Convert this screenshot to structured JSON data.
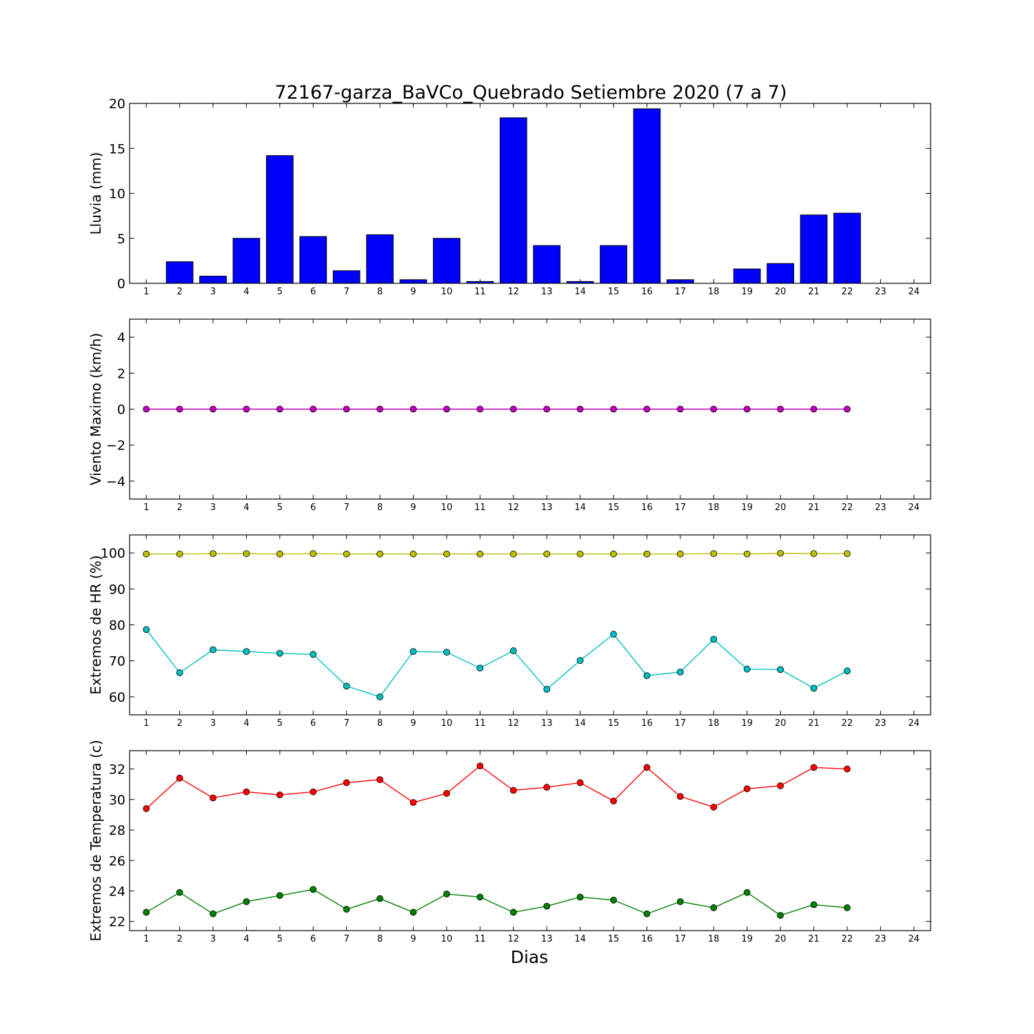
{
  "title": "72167-garza_BaVCo_Quebrado Setiembre 2020  (7 a 7)",
  "xlabel": "Dias",
  "chart_data": [
    {
      "type": "bar",
      "ylabel": "Lluvia (mm)",
      "xlim": [
        0.5,
        24.5
      ],
      "ylim": [
        0,
        20
      ],
      "xticks": [
        1,
        2,
        3,
        4,
        5,
        6,
        7,
        8,
        9,
        10,
        11,
        12,
        13,
        14,
        15,
        16,
        17,
        18,
        19,
        20,
        21,
        22,
        23,
        24
      ],
      "yticks": [
        0,
        5,
        10,
        15,
        20
      ],
      "grid": false,
      "series": [
        {
          "color": "#0000ff",
          "x": [
            1,
            2,
            3,
            4,
            5,
            6,
            7,
            8,
            9,
            10,
            11,
            12,
            13,
            14,
            15,
            16,
            17,
            18,
            19,
            20,
            21,
            22
          ],
          "values": [
            0,
            2.4,
            0.8,
            5.0,
            14.2,
            5.2,
            1.4,
            5.4,
            0.4,
            5.0,
            0.2,
            18.4,
            4.2,
            0.2,
            4.2,
            19.4,
            0.4,
            0,
            1.6,
            2.2,
            7.6,
            7.8
          ]
        }
      ]
    },
    {
      "type": "line",
      "ylabel": "Viento Maximo (km/h)",
      "xlim": [
        0.5,
        24.5
      ],
      "ylim": [
        -5,
        5
      ],
      "xticks": [
        1,
        2,
        3,
        4,
        5,
        6,
        7,
        8,
        9,
        10,
        11,
        12,
        13,
        14,
        15,
        16,
        17,
        18,
        19,
        20,
        21,
        22,
        23,
        24
      ],
      "yticks": [
        -4,
        -2,
        0,
        2,
        4
      ],
      "grid": false,
      "series": [
        {
          "color": "#bf00bf",
          "x": [
            1,
            2,
            3,
            4,
            5,
            6,
            7,
            8,
            9,
            10,
            11,
            12,
            13,
            14,
            15,
            16,
            17,
            18,
            19,
            20,
            21,
            22
          ],
          "values": [
            0,
            0,
            0,
            0,
            0,
            0,
            0,
            0,
            0,
            0,
            0,
            0,
            0,
            0,
            0,
            0,
            0,
            0,
            0,
            0,
            0,
            0
          ]
        }
      ]
    },
    {
      "type": "line",
      "ylabel": "Extremos de HR (%)",
      "xlim": [
        0.5,
        24.5
      ],
      "ylim": [
        55,
        105
      ],
      "xticks": [
        1,
        2,
        3,
        4,
        5,
        6,
        7,
        8,
        9,
        10,
        11,
        12,
        13,
        14,
        15,
        16,
        17,
        18,
        19,
        20,
        21,
        22,
        23,
        24
      ],
      "yticks": [
        60,
        70,
        80,
        90,
        100
      ],
      "grid": false,
      "series": [
        {
          "color": "#bfbf00",
          "x": [
            1,
            2,
            3,
            4,
            5,
            6,
            7,
            8,
            9,
            10,
            11,
            12,
            13,
            14,
            15,
            16,
            17,
            18,
            19,
            20,
            21,
            22
          ],
          "values": [
            99.7,
            99.7,
            99.8,
            99.8,
            99.7,
            99.8,
            99.7,
            99.7,
            99.7,
            99.7,
            99.7,
            99.7,
            99.7,
            99.7,
            99.7,
            99.7,
            99.7,
            99.8,
            99.7,
            99.9,
            99.8,
            99.8
          ]
        },
        {
          "color": "#00bfbf",
          "x": [
            1,
            2,
            3,
            4,
            5,
            6,
            7,
            8,
            9,
            10,
            11,
            12,
            13,
            14,
            15,
            16,
            17,
            18,
            19,
            20,
            21,
            22
          ],
          "values": [
            78.7,
            66.7,
            73.1,
            72.6,
            72.1,
            71.8,
            63.0,
            60.0,
            72.6,
            72.4,
            68.0,
            72.8,
            62.1,
            70.1,
            77.4,
            65.9,
            66.9,
            76.0,
            67.7,
            67.6,
            62.4,
            67.2
          ]
        }
      ]
    },
    {
      "type": "line",
      "ylabel": "Extremos de Temperatura (c)",
      "xlim": [
        0.5,
        24.5
      ],
      "ylim": [
        21.4,
        33.2
      ],
      "xticks": [
        1,
        2,
        3,
        4,
        5,
        6,
        7,
        8,
        9,
        10,
        11,
        12,
        13,
        14,
        15,
        16,
        17,
        18,
        19,
        20,
        21,
        22,
        23,
        24
      ],
      "yticks": [
        22,
        24,
        26,
        28,
        30,
        32
      ],
      "grid": false,
      "series": [
        {
          "color": "#ff0000",
          "x": [
            1,
            2,
            3,
            4,
            5,
            6,
            7,
            8,
            9,
            10,
            11,
            12,
            13,
            14,
            15,
            16,
            17,
            18,
            19,
            20,
            21,
            22
          ],
          "values": [
            29.4,
            31.4,
            30.1,
            30.5,
            30.3,
            30.5,
            31.1,
            31.3,
            29.8,
            30.4,
            32.2,
            30.6,
            30.8,
            31.1,
            29.9,
            32.1,
            30.2,
            29.5,
            30.7,
            30.9,
            32.1,
            32.0
          ]
        },
        {
          "color": "#008000",
          "x": [
            1,
            2,
            3,
            4,
            5,
            6,
            7,
            8,
            9,
            10,
            11,
            12,
            13,
            14,
            15,
            16,
            17,
            18,
            19,
            20,
            21,
            22
          ],
          "values": [
            22.6,
            23.9,
            22.5,
            23.3,
            23.7,
            24.1,
            22.8,
            23.5,
            22.6,
            23.8,
            23.6,
            22.6,
            23.0,
            23.6,
            23.4,
            22.5,
            23.3,
            22.9,
            23.9,
            22.4,
            23.1,
            22.9
          ]
        }
      ]
    }
  ]
}
